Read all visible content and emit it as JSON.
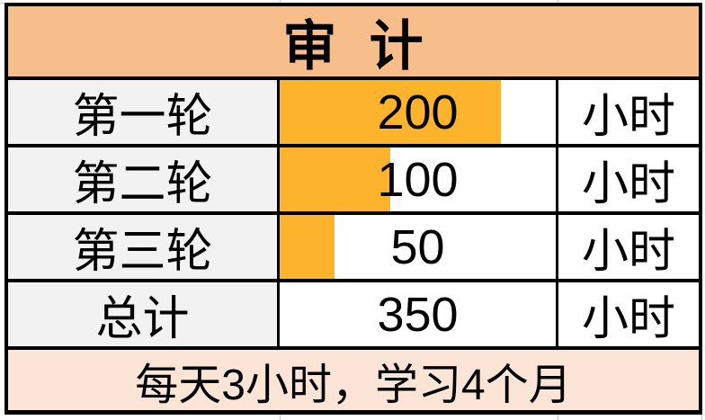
{
  "table": {
    "title": "审  计",
    "rows": [
      {
        "label": "第一轮",
        "value": 200,
        "unit": "小时",
        "show_bar": true
      },
      {
        "label": "第二轮",
        "value": 100,
        "unit": "小时",
        "show_bar": true
      },
      {
        "label": "第三轮",
        "value": 50,
        "unit": "小时",
        "show_bar": true
      },
      {
        "label": "总计",
        "value": 350,
        "unit": "小时",
        "show_bar": false
      }
    ],
    "note": "每天3小时，学习4个月",
    "bar_max": 250
  },
  "colors": {
    "header_fill": "#f7be8c",
    "label_column_fill": "#f2f2f2",
    "data_bar_fill": "#fdb42c",
    "footer_fill": "#fce5d7",
    "table_border": "#000000",
    "cell_background": "#ffffff",
    "sheet_gridline": "#c9c9c9",
    "text": "#000000"
  },
  "chart_data": {
    "type": "table",
    "title": "审 计",
    "categories": [
      "第一轮",
      "第二轮",
      "第三轮",
      "总计"
    ],
    "values": [
      200,
      100,
      50,
      350
    ],
    "unit": "小时",
    "note": "每天3小时，学习4个月",
    "bar_scale_max": 250,
    "bar_fractions": [
      0.8,
      0.4,
      0.2,
      0
    ],
    "legend": "none",
    "grid": "off"
  }
}
